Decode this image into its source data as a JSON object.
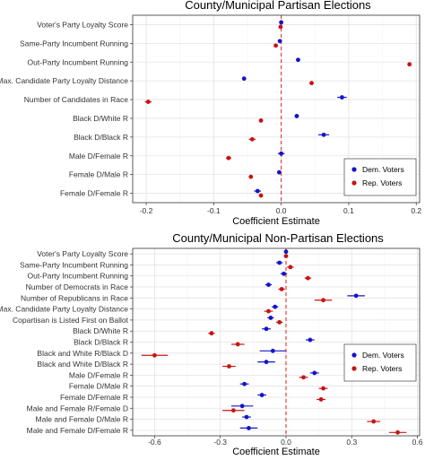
{
  "chart_data": [
    {
      "type": "scatter",
      "title": "County/Municipal Partisan Elections",
      "xlabel": "Coefficient Estimate",
      "ylabel": "",
      "xlim": [
        -0.22,
        0.205
      ],
      "xticks": [
        -0.2,
        -0.1,
        0.0,
        0.1,
        0.2
      ],
      "xtick_labels": [
        "-0.2",
        "-0.1",
        "0.0",
        "0.1",
        "0.2"
      ],
      "reference_line": {
        "x": 0,
        "style": "dashed",
        "color": "#e8312a"
      },
      "grid": true,
      "legend_position": "bottom-right",
      "categories": [
        "Voter's Party Loyalty Score",
        "Same-Party Incumbent Running",
        "Out-Party Incumbent Running",
        "Max. Candidate Party Loyalty Distance",
        "Number of Candidates in Race",
        "Black D/White R",
        "Black D/Black R",
        "Male D/Female R",
        "Female D/Male R",
        "Female D/Female R"
      ],
      "series": [
        {
          "name": "Dem. Voters",
          "color": "#1414c8",
          "estimates": [
            0.0,
            -0.002,
            0.025,
            -0.055,
            0.09,
            0.023,
            0.063,
            0.0,
            -0.003,
            -0.035
          ],
          "ci_low": [
            -0.003,
            -0.005,
            0.022,
            -0.058,
            0.083,
            0.02,
            0.055,
            -0.005,
            -0.006,
            -0.04
          ],
          "ci_high": [
            0.003,
            0.001,
            0.028,
            -0.052,
            0.097,
            0.026,
            0.071,
            0.005,
            0.0,
            -0.03
          ]
        },
        {
          "name": "Rep. Voters",
          "color": "#c81414",
          "estimates": [
            -0.001,
            -0.008,
            0.19,
            0.045,
            -0.197,
            -0.03,
            -0.043,
            -0.078,
            -0.045,
            -0.03
          ],
          "ci_low": [
            -0.004,
            -0.011,
            0.187,
            0.042,
            -0.202,
            -0.033,
            -0.048,
            -0.082,
            -0.048,
            -0.033
          ],
          "ci_high": [
            0.002,
            -0.005,
            0.193,
            0.048,
            -0.192,
            -0.027,
            -0.038,
            -0.074,
            -0.042,
            -0.027
          ]
        }
      ]
    },
    {
      "type": "scatter",
      "title": "County/Municipal Non-Partisan Elections",
      "xlabel": "Coefficient Estimate",
      "ylabel": "",
      "xlim": [
        -0.7,
        0.61
      ],
      "xticks": [
        -0.6,
        -0.3,
        0.0,
        0.3,
        0.6
      ],
      "xtick_labels": [
        "-0.6",
        "-0.3",
        "0.0",
        "0.3",
        "0.6"
      ],
      "reference_line": {
        "x": 0,
        "style": "dashed",
        "color": "#e8312a"
      },
      "grid": true,
      "legend_position": "bottom-right",
      "categories": [
        "Voter's Party Loyalty Score",
        "Same-Party Incumbent Running",
        "Out-Party Incumbent Running",
        "Number of Democrats in Race",
        "Number of Republicans in Race",
        "Max. Candidate Party Loyalty Distance",
        "Copartisan is Listed First on Ballot",
        "Black D/White R",
        "Black D/Black R",
        "Black and White R/Black D",
        "Black and White D/Black R",
        "Male D/Female R",
        "Female D/Male R",
        "Female D/Female R",
        "Male and Female R/Female D",
        "Male and Female D/Male R",
        "Male and Female D/Female R"
      ],
      "series": [
        {
          "name": "Dem. Voters",
          "color": "#1414c8",
          "estimates": [
            0.0,
            -0.03,
            -0.01,
            -0.08,
            0.32,
            -0.05,
            -0.07,
            -0.09,
            0.11,
            -0.06,
            -0.09,
            0.13,
            -0.19,
            -0.11,
            -0.2,
            -0.18,
            -0.17
          ],
          "ci_low": [
            -0.005,
            -0.045,
            -0.025,
            -0.095,
            0.28,
            -0.065,
            -0.085,
            -0.11,
            0.09,
            -0.12,
            -0.13,
            0.11,
            -0.21,
            -0.13,
            -0.25,
            -0.2,
            -0.21
          ],
          "ci_high": [
            0.005,
            -0.015,
            0.005,
            -0.065,
            0.36,
            -0.035,
            -0.055,
            -0.07,
            0.13,
            0.0,
            -0.05,
            0.15,
            -0.17,
            -0.09,
            -0.15,
            -0.16,
            -0.13
          ]
        },
        {
          "name": "Rep. Voters",
          "color": "#c81414",
          "estimates": [
            0.0,
            0.02,
            0.1,
            -0.02,
            0.17,
            -0.08,
            -0.03,
            -0.34,
            -0.22,
            -0.6,
            -0.26,
            0.08,
            0.17,
            0.16,
            -0.24,
            0.4,
            0.51
          ],
          "ci_low": [
            -0.005,
            0.005,
            0.085,
            -0.035,
            0.13,
            -0.1,
            -0.045,
            -0.355,
            -0.25,
            -0.66,
            -0.29,
            0.06,
            0.15,
            0.14,
            -0.29,
            0.37,
            0.47
          ],
          "ci_high": [
            0.005,
            0.035,
            0.115,
            -0.005,
            0.21,
            -0.06,
            -0.015,
            -0.325,
            -0.19,
            -0.54,
            -0.23,
            0.1,
            0.19,
            0.18,
            -0.19,
            0.43,
            0.55
          ]
        }
      ]
    }
  ]
}
